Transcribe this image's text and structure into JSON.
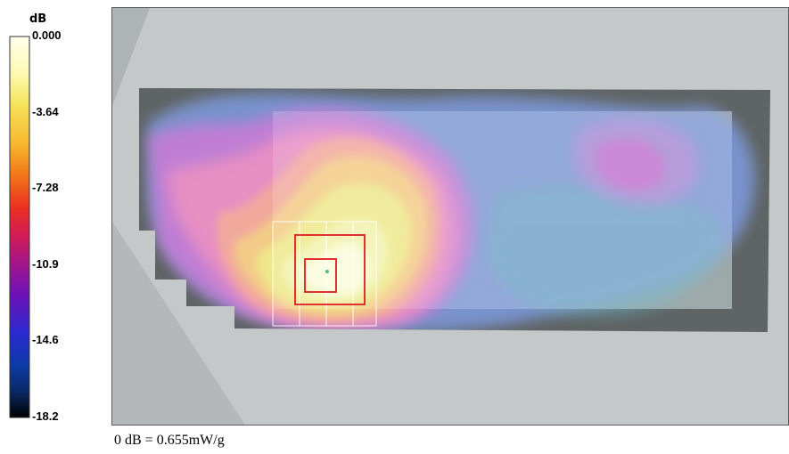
{
  "chart_data": {
    "type": "heatmap",
    "legend": {
      "unit": "dB",
      "tick_labels": [
        "0.000",
        "-3.64",
        "-7.28",
        "-10.9",
        "-14.6",
        "-18.2"
      ],
      "range": [
        -18.2,
        0.0
      ]
    },
    "footnote": "0 dB = 0.655mW/g",
    "peak_value_db": 0.0,
    "colors": {
      "colorbar_stops": [
        "#ffffee",
        "#fff8b0",
        "#f5e35a",
        "#f7b830",
        "#f27a18",
        "#ea3020",
        "#d31c55",
        "#a0168c",
        "#6a12b8",
        "#2a2ad0",
        "#0c3aa8",
        "#0a2a66",
        "#000000"
      ],
      "outline_red": "#e03030",
      "background_grey": "#c4c8c8",
      "phone_dark_grey": "#5f6464"
    }
  }
}
